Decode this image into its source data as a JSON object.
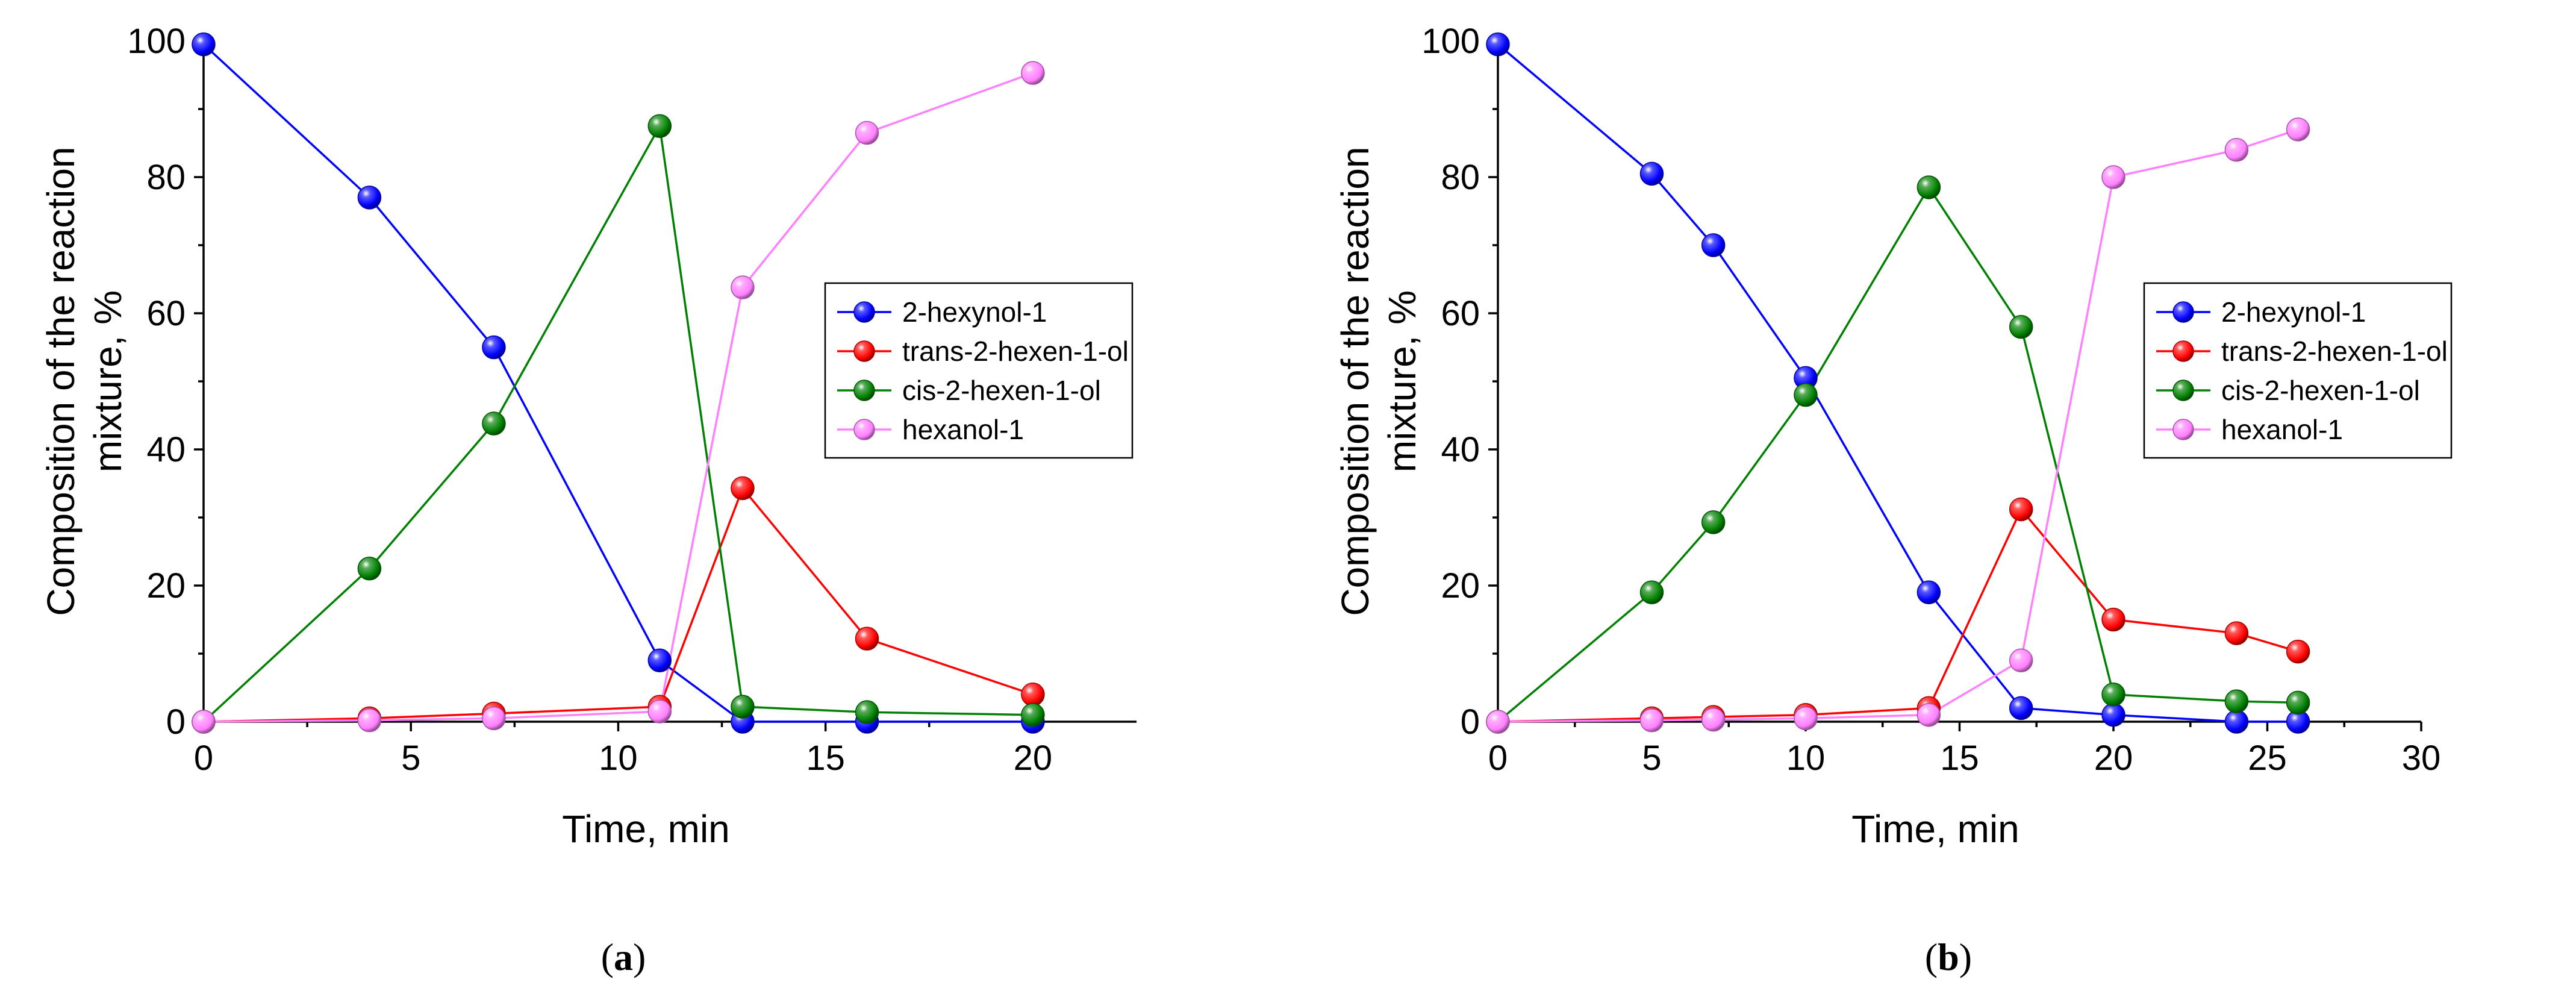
{
  "chart_data": [
    {
      "type": "line",
      "panel_label": "a",
      "title": "",
      "xlabel": "Time, min",
      "ylabel": "Composition of the reaction mixture, %",
      "ylabel_lines": [
        "Composition of the reaction",
        "mixture, %"
      ],
      "xlim": [
        0,
        22.5
      ],
      "ylim": [
        0,
        100
      ],
      "xticks": [
        0,
        5,
        10,
        15,
        20
      ],
      "yticks": [
        0,
        20,
        40,
        60,
        80,
        100
      ],
      "legend_position": "center-right",
      "series": [
        {
          "name": "2-hexynol-1",
          "color": "#0000ff",
          "x": [
            0,
            4,
            7,
            11,
            13,
            16,
            20
          ],
          "y": [
            99.5,
            77,
            55,
            9,
            0,
            0,
            0
          ]
        },
        {
          "name": "trans-2-hexen-1-ol",
          "color": "#ff0000",
          "x": [
            0,
            4,
            7,
            11,
            13,
            16,
            20
          ],
          "y": [
            0,
            0.5,
            1.2,
            2.2,
            34.3,
            12.2,
            4
          ]
        },
        {
          "name": "cis-2-hexen-1-ol",
          "color": "#008000",
          "x": [
            0,
            4,
            7,
            11,
            13,
            16,
            20
          ],
          "y": [
            0,
            22.5,
            43.8,
            87.5,
            2.2,
            1.4,
            1
          ]
        },
        {
          "name": "hexanol-1",
          "color": "#ff80ff",
          "x": [
            0,
            4,
            7,
            11,
            13,
            16,
            20
          ],
          "y": [
            0,
            0.2,
            0.5,
            1.5,
            63.8,
            86.5,
            95.3
          ]
        }
      ]
    },
    {
      "type": "line",
      "panel_label": "b",
      "title": "",
      "xlabel": "Time, min",
      "ylabel": "Composition of the reaction mixture, %",
      "ylabel_lines": [
        "Composition of the reaction",
        "mixture, %"
      ],
      "xlim": [
        0,
        30
      ],
      "ylim": [
        0,
        100
      ],
      "xticks": [
        0,
        5,
        10,
        15,
        20,
        25,
        30
      ],
      "yticks": [
        0,
        20,
        40,
        60,
        80,
        100
      ],
      "legend_position": "center-right",
      "series": [
        {
          "name": "2-hexynol-1",
          "color": "#0000ff",
          "x": [
            0,
            5,
            7,
            10,
            14,
            17,
            20,
            24,
            26
          ],
          "y": [
            99.5,
            80.5,
            70,
            50.5,
            19,
            2,
            1,
            0,
            0
          ]
        },
        {
          "name": "trans-2-hexen-1-ol",
          "color": "#ff0000",
          "x": [
            0,
            5,
            7,
            10,
            14,
            17,
            20,
            24,
            26
          ],
          "y": [
            0,
            0.5,
            0.7,
            1,
            2,
            31.2,
            15,
            13,
            10.3
          ]
        },
        {
          "name": "cis-2-hexen-1-ol",
          "color": "#008000",
          "x": [
            0,
            5,
            7,
            10,
            14,
            17,
            20,
            24,
            26
          ],
          "y": [
            0,
            19,
            29.3,
            48,
            78.5,
            58,
            4,
            3,
            2.8
          ]
        },
        {
          "name": "hexanol-1",
          "color": "#ff80ff",
          "x": [
            0,
            5,
            7,
            10,
            14,
            17,
            20,
            24,
            26
          ],
          "y": [
            0,
            0.2,
            0.3,
            0.5,
            1,
            9,
            80,
            84,
            87
          ]
        }
      ]
    }
  ]
}
